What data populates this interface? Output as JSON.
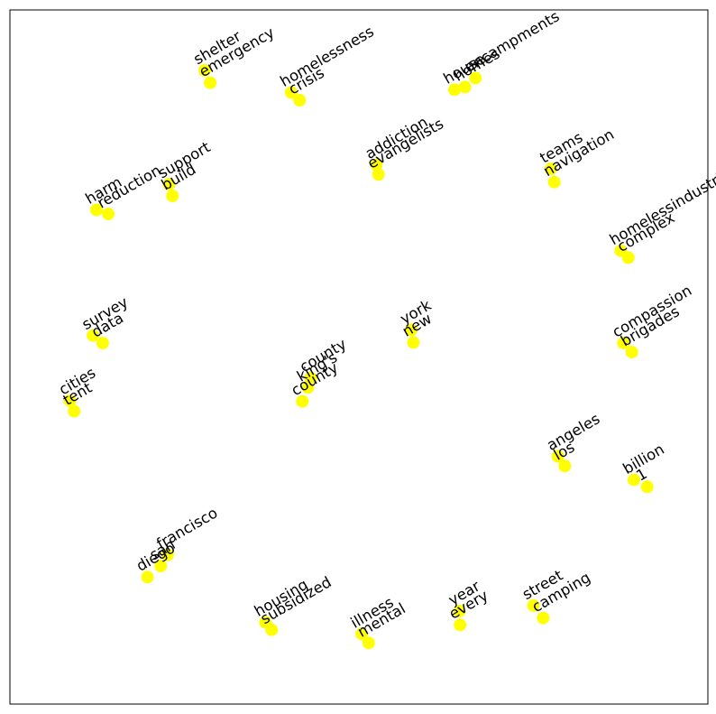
{
  "chart_data": {
    "type": "scatter",
    "title": "",
    "xlabel": "",
    "ylabel": "",
    "xlim": [
      0,
      1000
    ],
    "ylim": [
      0,
      1000
    ],
    "grid": false,
    "axes_visible": false,
    "marker_color": "#ffff00",
    "label_color": "#000000",
    "label_rotation_deg": 30,
    "points": [
      {
        "label": "shelter",
        "x": 279,
        "y": 913
      },
      {
        "label": "emergency",
        "x": 287,
        "y": 895
      },
      {
        "label": "homelessness",
        "x": 403,
        "y": 881
      },
      {
        "label": "crisis",
        "x": 415,
        "y": 870
      },
      {
        "label": "encampments",
        "x": 667,
        "y": 902
      },
      {
        "label": "homes",
        "x": 652,
        "y": 889
      },
      {
        "label": "house",
        "x": 637,
        "y": 885
      },
      {
        "label": "addiction",
        "x": 525,
        "y": 777
      },
      {
        "label": "evangelists",
        "x": 528,
        "y": 763
      },
      {
        "label": "teams",
        "x": 775,
        "y": 771
      },
      {
        "label": "navigation",
        "x": 780,
        "y": 752
      },
      {
        "label": "harm",
        "x": 124,
        "y": 712
      },
      {
        "label": "reduction",
        "x": 141,
        "y": 706
      },
      {
        "label": "support",
        "x": 228,
        "y": 749
      },
      {
        "label": "build",
        "x": 233,
        "y": 732
      },
      {
        "label": "homelessindustrial",
        "x": 875,
        "y": 653
      },
      {
        "label": "complex",
        "x": 886,
        "y": 643
      },
      {
        "label": "survey",
        "x": 119,
        "y": 531
      },
      {
        "label": "data",
        "x": 133,
        "y": 520
      },
      {
        "label": "york",
        "x": 575,
        "y": 539
      },
      {
        "label": "new",
        "x": 578,
        "y": 521
      },
      {
        "label": "compassion",
        "x": 879,
        "y": 520
      },
      {
        "label": "brigades",
        "x": 891,
        "y": 507
      },
      {
        "label": "county",
        "x": 431,
        "y": 470
      },
      {
        "label": "king's",
        "x": 427,
        "y": 456
      },
      {
        "label": "county",
        "x": 419,
        "y": 436
      },
      {
        "label": "cities",
        "x": 86,
        "y": 437
      },
      {
        "label": "tent",
        "x": 92,
        "y": 422
      },
      {
        "label": "angeles",
        "x": 785,
        "y": 357
      },
      {
        "label": "los",
        "x": 795,
        "y": 343
      },
      {
        "label": "billion",
        "x": 894,
        "y": 323
      },
      {
        "label": "1",
        "x": 913,
        "y": 313
      },
      {
        "label": "francisco",
        "x": 226,
        "y": 215
      },
      {
        "label": "san",
        "x": 216,
        "y": 199
      },
      {
        "label": "diego",
        "x": 197,
        "y": 183
      },
      {
        "label": "housing",
        "x": 366,
        "y": 118
      },
      {
        "label": "subsidized",
        "x": 375,
        "y": 107
      },
      {
        "label": "illness",
        "x": 504,
        "y": 101
      },
      {
        "label": "mental",
        "x": 514,
        "y": 88
      },
      {
        "label": "year",
        "x": 644,
        "y": 134
      },
      {
        "label": "every",
        "x": 645,
        "y": 114
      },
      {
        "label": "street",
        "x": 750,
        "y": 142
      },
      {
        "label": "camping",
        "x": 764,
        "y": 124
      }
    ]
  }
}
